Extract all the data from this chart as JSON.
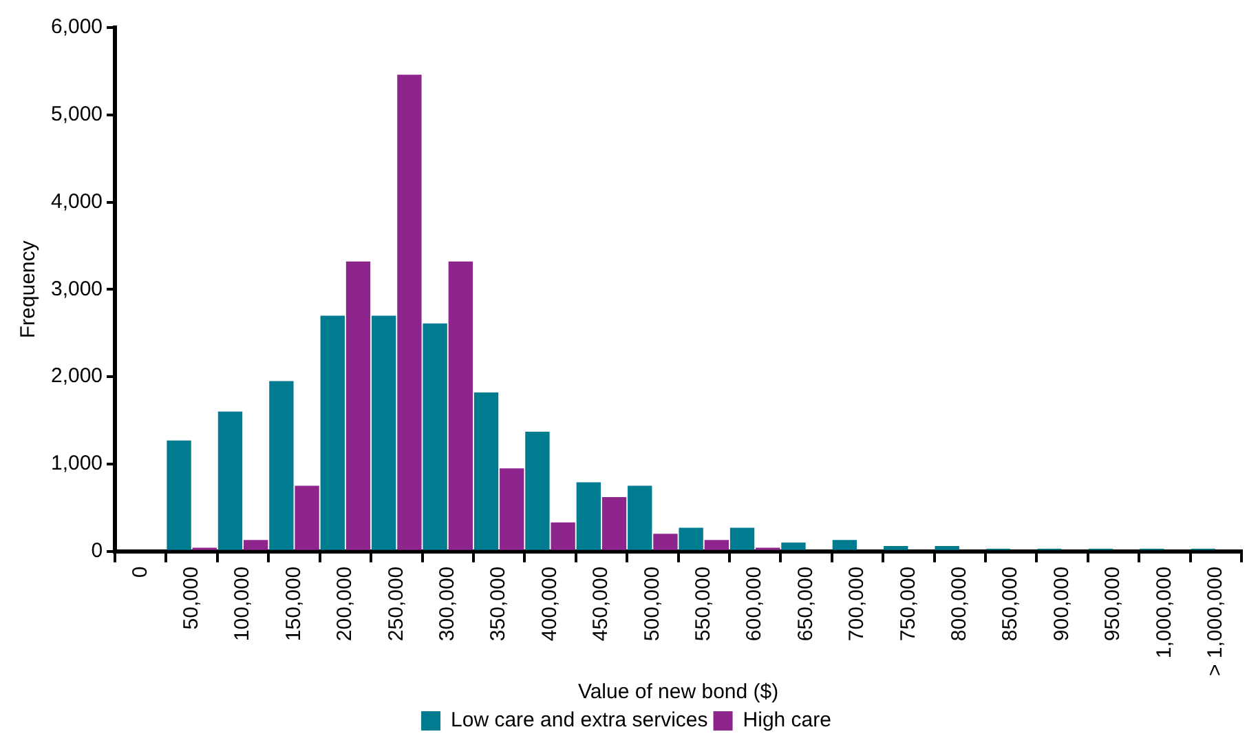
{
  "chart_data": {
    "type": "bar",
    "xlabel": "Value of new bond ($)",
    "ylabel": "Frequency",
    "categories": [
      "0",
      "50,000",
      "100,000",
      "150,000",
      "200,000",
      "250,000",
      "300,000",
      "350,000",
      "400,000",
      "450,000",
      "500,000",
      "550,000",
      "600,000",
      "650,000",
      "700,000",
      "750,000",
      "800,000",
      "850,000",
      "900,000",
      "950,000",
      "1,000,000",
      "> 1,000,000"
    ],
    "series": [
      {
        "name": "Low care and extra services",
        "color": "#007b8f",
        "values": [
          0,
          1270,
          1600,
          1950,
          2700,
          2700,
          2610,
          1820,
          1370,
          790,
          750,
          270,
          270,
          100,
          130,
          60,
          60,
          30,
          30,
          30,
          30,
          30
        ]
      },
      {
        "name": "High care",
        "color": "#8e258d",
        "values": [
          0,
          40,
          130,
          750,
          3320,
          5460,
          3320,
          950,
          330,
          620,
          200,
          130,
          40,
          0,
          0,
          0,
          0,
          0,
          0,
          0,
          0,
          0
        ]
      }
    ],
    "ylim": [
      0,
      6000
    ],
    "yticks": [
      0,
      {
        "value": 1000,
        "label": "1,000"
      },
      {
        "value": 2000,
        "label": "2,000"
      },
      {
        "value": 3000,
        "label": "3,000"
      },
      {
        "value": 4000,
        "label": "4,000"
      },
      {
        "value": 5000,
        "label": "5,000"
      },
      {
        "value": 6000,
        "label": "6,000"
      }
    ],
    "grid": false,
    "legend": "bottom"
  }
}
